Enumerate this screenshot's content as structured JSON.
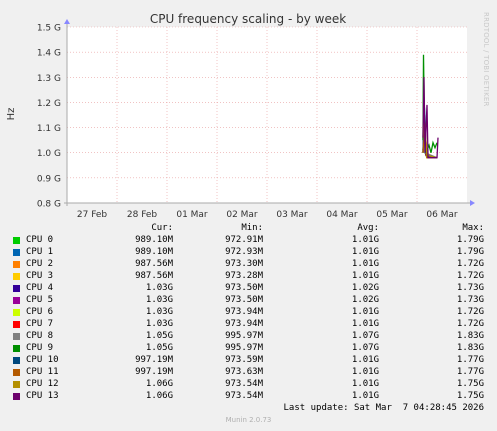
{
  "chart_data": {
    "type": "line",
    "title": "CPU frequency scaling - by week",
    "ylabel": "Hz",
    "xlabel": "",
    "ylim": [
      0.8,
      1.5
    ],
    "y_ticks": [
      "0.8 G",
      "0.9 G",
      "1.0 G",
      "1.1 G",
      "1.2 G",
      "1.3 G",
      "1.4 G",
      "1.5 G"
    ],
    "y_tick_values": [
      0.8,
      0.9,
      1.0,
      1.1,
      1.2,
      1.3,
      1.4,
      1.5
    ],
    "x_ticks": [
      "27 Feb",
      "28 Feb",
      "01 Mar",
      "02 Mar",
      "03 Mar",
      "04 Mar",
      "05 Mar",
      "06 Mar"
    ],
    "xlim_days": [
      0,
      8
    ],
    "grid": true,
    "series": [
      {
        "name": "CPU 0",
        "color": "#00cc00",
        "points": [
          [
            7.12,
            1.0
          ],
          [
            7.14,
            1.22
          ],
          [
            7.16,
            1.0
          ],
          [
            7.2,
            0.98
          ],
          [
            7.3,
            0.98
          ],
          [
            7.4,
            0.98
          ]
        ]
      },
      {
        "name": "CPU 1",
        "color": "#0066b3",
        "points": [
          [
            7.12,
            1.0
          ],
          [
            7.15,
            1.18
          ],
          [
            7.18,
            0.99
          ],
          [
            7.3,
            0.98
          ],
          [
            7.4,
            0.98
          ]
        ]
      },
      {
        "name": "CPU 2",
        "color": "#ff8000",
        "points": [
          [
            7.12,
            1.02
          ],
          [
            7.16,
            1.05
          ],
          [
            7.2,
            0.98
          ],
          [
            7.4,
            0.98
          ]
        ]
      },
      {
        "name": "CPU 3",
        "color": "#ffcc00",
        "points": [
          [
            7.12,
            1.02
          ],
          [
            7.17,
            1.04
          ],
          [
            7.2,
            0.98
          ],
          [
            7.4,
            0.98
          ]
        ]
      },
      {
        "name": "CPU 4",
        "color": "#330099",
        "points": [
          [
            7.12,
            1.01
          ],
          [
            7.14,
            1.1
          ],
          [
            7.18,
            0.99
          ],
          [
            7.4,
            0.98
          ]
        ]
      },
      {
        "name": "CPU 5",
        "color": "#990099",
        "points": [
          [
            7.12,
            1.01
          ],
          [
            7.16,
            1.12
          ],
          [
            7.19,
            0.99
          ],
          [
            7.4,
            0.98
          ]
        ]
      },
      {
        "name": "CPU 6",
        "color": "#ccff00",
        "points": [
          [
            7.12,
            1.0
          ],
          [
            7.15,
            1.06
          ],
          [
            7.2,
            0.98
          ],
          [
            7.4,
            0.98
          ]
        ]
      },
      {
        "name": "CPU 7",
        "color": "#ff0000",
        "points": [
          [
            7.12,
            1.0
          ],
          [
            7.14,
            1.08
          ],
          [
            7.18,
            0.99
          ],
          [
            7.4,
            0.98
          ]
        ]
      },
      {
        "name": "CPU 8",
        "color": "#808080",
        "points": [
          [
            7.12,
            1.05
          ],
          [
            7.13,
            1.3
          ],
          [
            7.16,
            1.0
          ],
          [
            7.4,
            0.98
          ]
        ]
      },
      {
        "name": "CPU 9",
        "color": "#008f00",
        "points": [
          [
            7.12,
            1.05
          ],
          [
            7.13,
            1.39
          ],
          [
            7.15,
            1.1
          ],
          [
            7.18,
            1.0
          ],
          [
            7.24,
            1.03
          ],
          [
            7.28,
            1.0
          ],
          [
            7.32,
            1.04
          ],
          [
            7.36,
            1.02
          ],
          [
            7.4,
            1.04
          ]
        ]
      },
      {
        "name": "CPU 10",
        "color": "#00487d",
        "points": [
          [
            7.12,
            1.0
          ],
          [
            7.15,
            1.15
          ],
          [
            7.19,
            0.99
          ],
          [
            7.4,
            0.98
          ]
        ]
      },
      {
        "name": "CPU 11",
        "color": "#b35a00",
        "points": [
          [
            7.12,
            1.0
          ],
          [
            7.16,
            1.1
          ],
          [
            7.2,
            0.98
          ],
          [
            7.4,
            0.98
          ]
        ]
      },
      {
        "name": "CPU 12",
        "color": "#b38f00",
        "points": [
          [
            7.12,
            1.06
          ],
          [
            7.15,
            1.12
          ],
          [
            7.2,
            0.99
          ],
          [
            7.4,
            0.98
          ]
        ]
      },
      {
        "name": "CPU 13",
        "color": "#6b006b",
        "points": [
          [
            7.12,
            1.06
          ],
          [
            7.14,
            1.3
          ],
          [
            7.16,
            1.0
          ],
          [
            7.2,
            1.19
          ],
          [
            7.22,
            0.98
          ],
          [
            7.4,
            0.98
          ],
          [
            7.42,
            1.06
          ]
        ]
      }
    ]
  },
  "legend": {
    "header": {
      "cur": "Cur:",
      "min": "Min:",
      "avg": "Avg:",
      "max": "Max:"
    },
    "rows": [
      {
        "name": "CPU 0",
        "color": "#00cc00",
        "cur": "989.10M",
        "min": "972.91M",
        "avg": "1.01G",
        "max": "1.79G"
      },
      {
        "name": "CPU 1",
        "color": "#0066b3",
        "cur": "989.10M",
        "min": "972.93M",
        "avg": "1.01G",
        "max": "1.79G"
      },
      {
        "name": "CPU 2",
        "color": "#ff8000",
        "cur": "987.56M",
        "min": "973.30M",
        "avg": "1.01G",
        "max": "1.72G"
      },
      {
        "name": "CPU 3",
        "color": "#ffcc00",
        "cur": "987.56M",
        "min": "973.28M",
        "avg": "1.01G",
        "max": "1.72G"
      },
      {
        "name": "CPU 4",
        "color": "#330099",
        "cur": "1.03G",
        "min": "973.50M",
        "avg": "1.02G",
        "max": "1.73G"
      },
      {
        "name": "CPU 5",
        "color": "#990099",
        "cur": "1.03G",
        "min": "973.50M",
        "avg": "1.02G",
        "max": "1.73G"
      },
      {
        "name": "CPU 6",
        "color": "#ccff00",
        "cur": "1.03G",
        "min": "973.94M",
        "avg": "1.01G",
        "max": "1.72G"
      },
      {
        "name": "CPU 7",
        "color": "#ff0000",
        "cur": "1.03G",
        "min": "973.94M",
        "avg": "1.01G",
        "max": "1.72G"
      },
      {
        "name": "CPU 8",
        "color": "#808080",
        "cur": "1.05G",
        "min": "995.97M",
        "avg": "1.07G",
        "max": "1.83G"
      },
      {
        "name": "CPU 9",
        "color": "#008f00",
        "cur": "1.05G",
        "min": "995.97M",
        "avg": "1.07G",
        "max": "1.83G"
      },
      {
        "name": "CPU 10",
        "color": "#00487d",
        "cur": "997.19M",
        "min": "973.59M",
        "avg": "1.01G",
        "max": "1.77G"
      },
      {
        "name": "CPU 11",
        "color": "#b35a00",
        "cur": "997.19M",
        "min": "973.63M",
        "avg": "1.01G",
        "max": "1.77G"
      },
      {
        "name": "CPU 12",
        "color": "#b38f00",
        "cur": "1.06G",
        "min": "973.54M",
        "avg": "1.01G",
        "max": "1.75G"
      },
      {
        "name": "CPU 13",
        "color": "#6b006b",
        "cur": "1.06G",
        "min": "973.54M",
        "avg": "1.01G",
        "max": "1.75G"
      }
    ]
  },
  "last_update": "Last update: Sat Mar  7 04:28:45 2026",
  "footer": "Munin 2.0.73",
  "side_label": "RRDTOOL / TOBI OETIKER"
}
